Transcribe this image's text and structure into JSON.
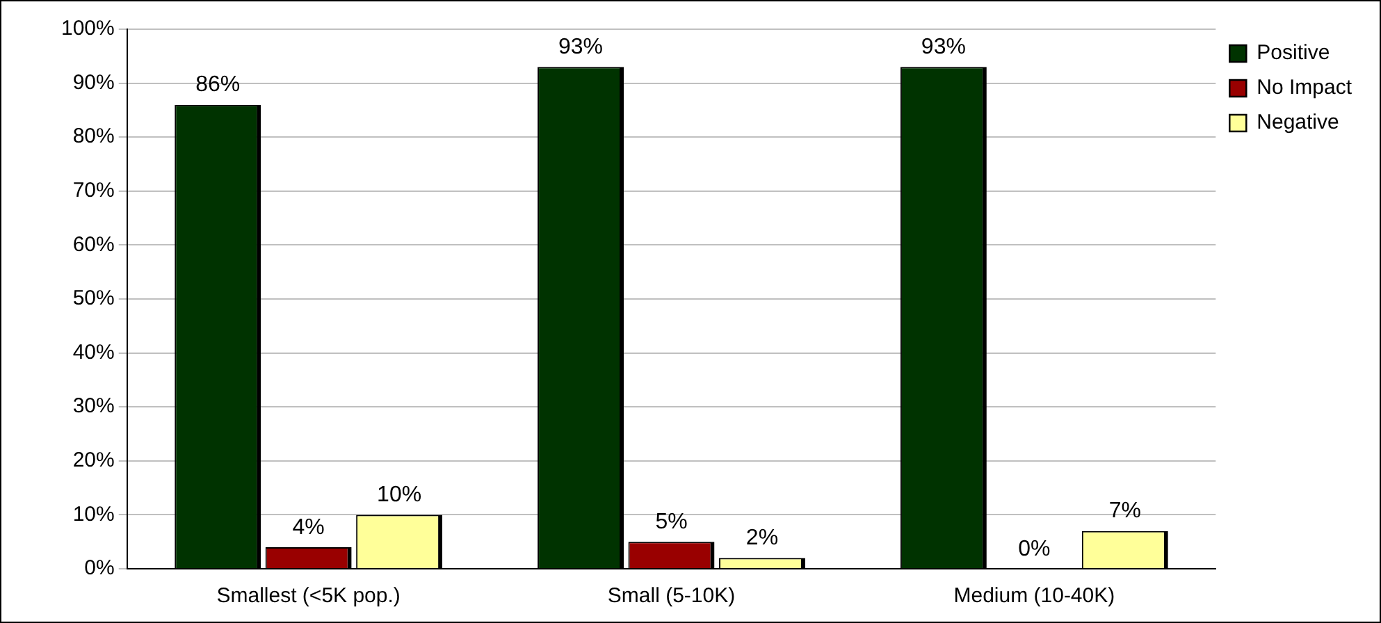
{
  "chart_data": {
    "type": "bar",
    "categories": [
      "Smallest (<5K pop.)",
      "Small (5-10K)",
      "Medium (10-40K)"
    ],
    "series": [
      {
        "name": "Positive",
        "color": "#003300",
        "values": [
          86,
          93,
          93
        ],
        "value_labels": [
          "86%",
          "93%",
          "93%"
        ]
      },
      {
        "name": "No Impact",
        "color": "#990000",
        "values": [
          4,
          5,
          0
        ],
        "value_labels": [
          "4%",
          "5%",
          "0%"
        ]
      },
      {
        "name": "Negative",
        "color": "#ffff99",
        "values": [
          10,
          2,
          7
        ],
        "value_labels": [
          "10%",
          "2%",
          "7%"
        ]
      }
    ],
    "ylim": [
      0,
      100
    ],
    "yticks": [
      {
        "value": 0,
        "label": "0%"
      },
      {
        "value": 10,
        "label": "10%"
      },
      {
        "value": 20,
        "label": "20%"
      },
      {
        "value": 30,
        "label": "30%"
      },
      {
        "value": 40,
        "label": "40%"
      },
      {
        "value": 50,
        "label": "50%"
      },
      {
        "value": 60,
        "label": "60%"
      },
      {
        "value": 70,
        "label": "70%"
      },
      {
        "value": 80,
        "label": "80%"
      },
      {
        "value": 90,
        "label": "90%"
      },
      {
        "value": 100,
        "label": "100%"
      }
    ],
    "grid": "y",
    "legend": "top right"
  }
}
